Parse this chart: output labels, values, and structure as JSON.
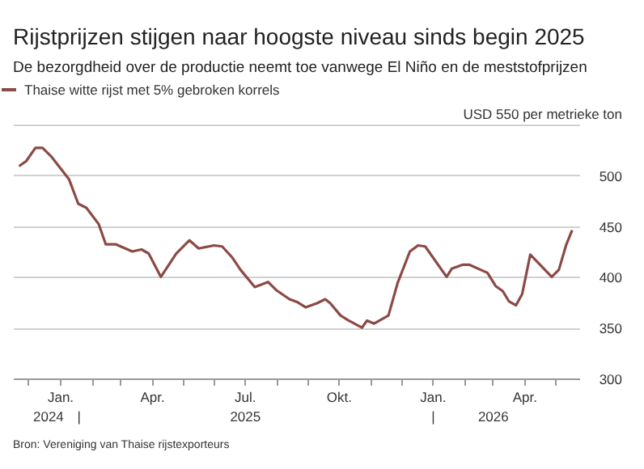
{
  "chart_data": {
    "type": "line",
    "title": "Rijstprijzen stijgen naar hoogste niveau sinds begin 2025",
    "subtitle": "De bezorgdheid over de productie neemt toe vanwege El Niño en de meststofprijzen",
    "x": [
      "2024-11-22",
      "2024-11-29",
      "2024-12-08",
      "2024-12-15",
      "2024-12-24",
      "2025-01-10",
      "2025-01-19",
      "2025-01-27",
      "2025-02-08",
      "2025-02-15",
      "2025-02-25",
      "2025-03-13",
      "2025-03-22",
      "2025-03-29",
      "2025-04-10",
      "2025-04-25",
      "2025-05-08",
      "2025-05-17",
      "2025-06-01",
      "2025-06-09",
      "2025-06-19",
      "2025-06-27",
      "2025-07-11",
      "2025-07-24",
      "2025-08-01",
      "2025-08-14",
      "2025-08-22",
      "2025-08-30",
      "2025-09-10",
      "2025-09-18",
      "2025-09-23",
      "2025-10-03",
      "2025-10-11",
      "2025-10-24",
      "2025-10-29",
      "2025-11-05",
      "2025-11-19",
      "2025-11-28",
      "2025-12-10",
      "2025-12-18",
      "2025-12-25",
      "2026-01-15",
      "2026-01-20",
      "2026-01-31",
      "2026-02-06",
      "2026-02-24",
      "2026-03-04",
      "2026-03-11",
      "2026-03-17",
      "2026-03-24",
      "2026-03-30",
      "2026-04-07",
      "2026-04-28",
      "2026-05-05",
      "2026-05-12",
      "2026-05-18"
    ],
    "series": [
      {
        "name": "Thaise witte rijst met 5% gebroken korrels",
        "color": "#8b4a45",
        "values": [
          509,
          514,
          527,
          527,
          518,
          496,
          472,
          468,
          452,
          432,
          432,
          425,
          427,
          423,
          400,
          423,
          436,
          428,
          431,
          430,
          419,
          407,
          390,
          395,
          387,
          378,
          375,
          370,
          374,
          378,
          374,
          362,
          357,
          350,
          357,
          354,
          362,
          394,
          425,
          431,
          430,
          400,
          408,
          412,
          412,
          404,
          391,
          386,
          376,
          372,
          383,
          422,
          400,
          407,
          431,
          446
        ]
      }
    ],
    "xlim": [
      "2024-11-16",
      "2026-05-25"
    ],
    "xticks": [
      {
        "value": "2024-12",
        "label": null
      },
      {
        "value": "2025-01",
        "label": "Jan."
      },
      {
        "value": "2025-02",
        "label": null
      },
      {
        "value": "2025-03",
        "label": null
      },
      {
        "value": "2025-04",
        "label": "Apr."
      },
      {
        "value": "2025-05",
        "label": null
      },
      {
        "value": "2025-06",
        "label": null
      },
      {
        "value": "2025-07",
        "label": "Jul."
      },
      {
        "value": "2025-08",
        "label": null
      },
      {
        "value": "2025-09",
        "label": null
      },
      {
        "value": "2025-10",
        "label": "Okt."
      },
      {
        "value": "2025-11",
        "label": null
      },
      {
        "value": "2025-12",
        "label": null
      },
      {
        "value": "2026-01",
        "label": "Jan."
      },
      {
        "value": "2026-02",
        "label": null
      },
      {
        "value": "2026-03",
        "label": null
      },
      {
        "value": "2026-04",
        "label": "Apr."
      },
      {
        "value": "2026-05",
        "label": null
      }
    ],
    "x2lim": [
      "2024-11-16",
      "2026-05-25"
    ],
    "x2ticks": [
      {
        "value": "2024-12-20",
        "label": "2024"
      },
      {
        "value": "2025-01-19",
        "label": "|"
      },
      {
        "value": "2025-07-01",
        "label": "2025"
      },
      {
        "value": "2026-01-01",
        "label": "|"
      },
      {
        "value": "2026-03-01",
        "label": "2026"
      }
    ],
    "ylim": [
      300,
      550
    ],
    "yticks": [
      300,
      350,
      400,
      450,
      500,
      {
        "value": 550,
        "label": "USD 550 per metrieke ton"
      }
    ],
    "grid": "y",
    "legend": "top left",
    "annotations": [
      "Bron: Vereniging van Thaise rijstexporteurs"
    ]
  }
}
